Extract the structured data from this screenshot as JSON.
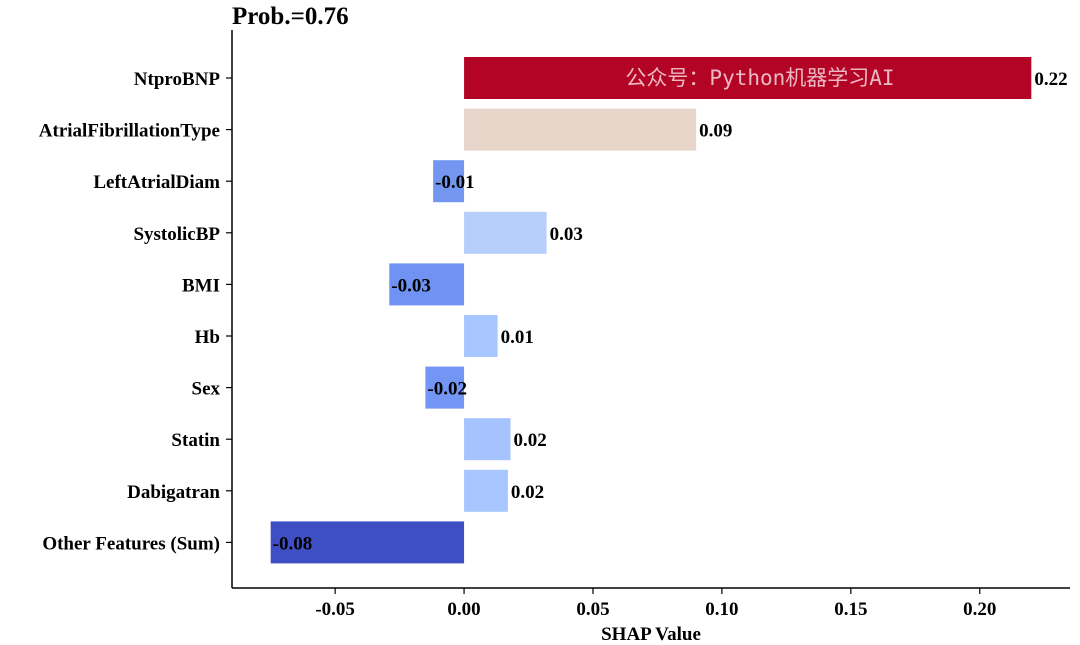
{
  "chart_data": {
    "type": "bar",
    "orientation": "horizontal",
    "title": "Prob.=0.76",
    "xlabel": "SHAP Value",
    "ylabel": "",
    "xlim": [
      -0.09,
      0.235
    ],
    "xticks": [
      -0.05,
      0.0,
      0.05,
      0.1,
      0.15,
      0.2
    ],
    "xtick_labels": [
      "-0.05",
      "0.00",
      "0.05",
      "0.10",
      "0.15",
      "0.20"
    ],
    "categories": [
      "NtproBNP",
      "AtrialFibrillationType",
      "LeftAtrialDiam",
      "SystolicBP",
      "BMI",
      "Hb",
      "Sex",
      "Statin",
      "Dabigatran",
      "Other Features (Sum)"
    ],
    "values": [
      0.22,
      0.09,
      -0.012,
      0.032,
      -0.029,
      0.013,
      -0.015,
      0.018,
      0.017,
      -0.075
    ],
    "value_labels": [
      "0.22",
      "0.09",
      "-0.01",
      "0.03",
      "-0.03",
      "0.01",
      "-0.02",
      "0.02",
      "0.02",
      "-0.08"
    ],
    "bar_colors": [
      "#b40426",
      "#e8d6cb",
      "#7397f0",
      "#b6cefa",
      "#6f92f3",
      "#a7c5fe",
      "#7396f5",
      "#a5c3fe",
      "#a7c5fe",
      "#3e4fc4"
    ],
    "grid": false,
    "watermark": "公众号：Python机器学习AI"
  }
}
